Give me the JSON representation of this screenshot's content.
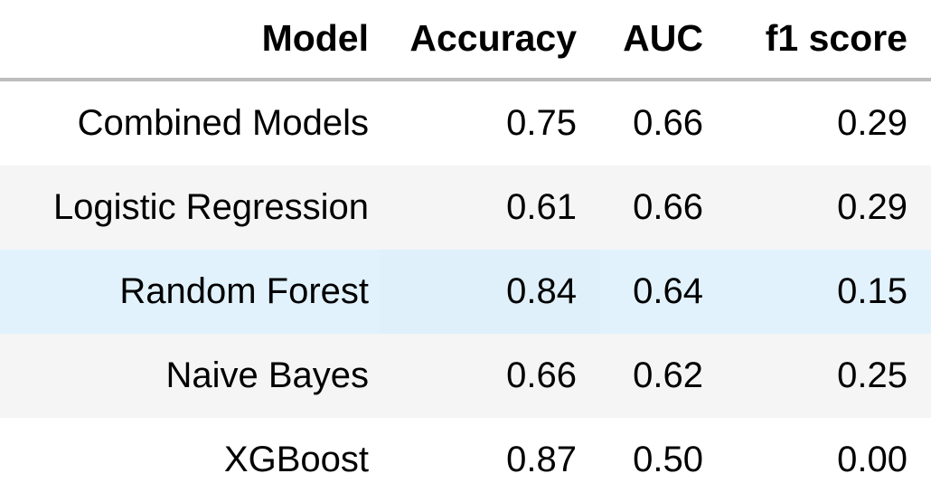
{
  "table": {
    "headers": [
      "Model",
      "Accuracy",
      "AUC",
      "f1 score"
    ],
    "rows": [
      [
        "Combined Models",
        "0.75",
        "0.66",
        "0.29"
      ],
      [
        "Logistic Regression",
        "0.61",
        "0.66",
        "0.29"
      ],
      [
        "Random Forest",
        "0.84",
        "0.64",
        "0.15"
      ],
      [
        "Naive Bayes",
        "0.66",
        "0.62",
        "0.25"
      ],
      [
        "XGBoost",
        "0.87",
        "0.50",
        "0.00"
      ]
    ],
    "highlighted_row": "Random Forest",
    "colors": {
      "header_border": "#bdbdbd",
      "stripe": "#f5f5f5",
      "hover_highlight": "#e1f2fc"
    }
  }
}
